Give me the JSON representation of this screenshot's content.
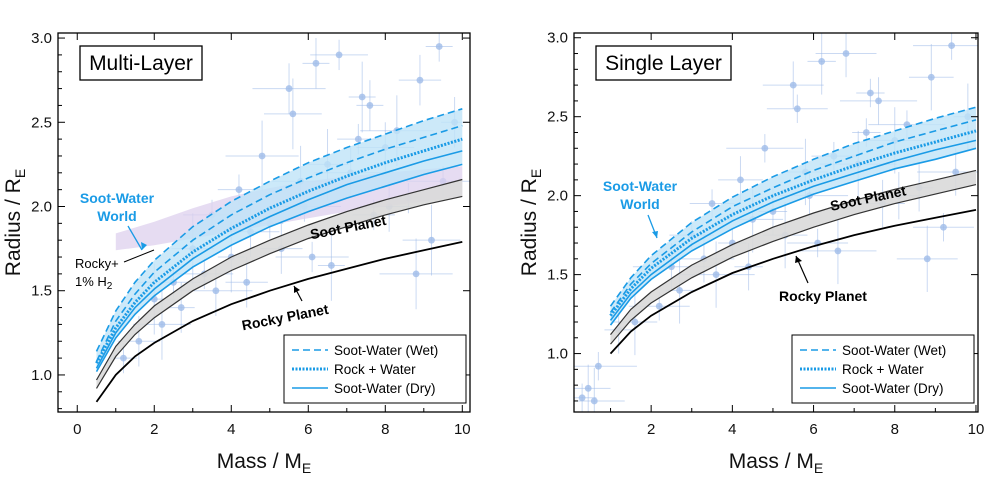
{
  "chart_data": [
    {
      "type": "line",
      "title": "Multi-Layer",
      "xlabel": "Mass / M",
      "xlabel_sub": "E",
      "ylabel": "Radius / R",
      "ylabel_sub": "E",
      "xlim": [
        -0.5,
        10.2
      ],
      "ylim": [
        0.78,
        3.03
      ],
      "xticks": [
        0,
        2,
        4,
        6,
        8,
        10
      ],
      "yticks": [
        1.0,
        1.5,
        2.0,
        2.5,
        3.0
      ],
      "ytick_labels": [
        "1.0",
        "1.5",
        "2.0",
        "2.5",
        "3.0"
      ],
      "annotations": {
        "soot_water_world": [
          "Soot-Water",
          "World"
        ],
        "soot_planet": "Soot Planet",
        "rocky_planet": "Rocky Planet",
        "rocky_h2": [
          "Rocky+",
          "1% H",
          "2"
        ]
      },
      "curves": {
        "x": [
          0.5,
          1,
          1.5,
          2,
          3,
          4,
          5,
          6,
          7,
          8,
          9,
          10
        ],
        "wet_upper": [
          1.14,
          1.38,
          1.55,
          1.68,
          1.88,
          2.03,
          2.15,
          2.26,
          2.35,
          2.43,
          2.51,
          2.58
        ],
        "wet_lower": [
          1.08,
          1.32,
          1.48,
          1.61,
          1.8,
          1.95,
          2.07,
          2.17,
          2.26,
          2.34,
          2.41,
          2.48
        ],
        "rock_water": [
          1.07,
          1.28,
          1.43,
          1.55,
          1.73,
          1.87,
          1.99,
          2.09,
          2.18,
          2.26,
          2.33,
          2.4
        ],
        "dry_upper": [
          1.04,
          1.25,
          1.4,
          1.51,
          1.69,
          1.83,
          1.94,
          2.04,
          2.13,
          2.2,
          2.27,
          2.33
        ],
        "dry_lower": [
          1.02,
          1.22,
          1.36,
          1.47,
          1.64,
          1.77,
          1.88,
          1.97,
          2.05,
          2.12,
          2.19,
          2.25
        ],
        "soot_upper": [
          0.97,
          1.17,
          1.3,
          1.41,
          1.57,
          1.7,
          1.8,
          1.89,
          1.97,
          2.04,
          2.1,
          2.16
        ],
        "soot_lower": [
          0.92,
          1.11,
          1.24,
          1.34,
          1.5,
          1.62,
          1.72,
          1.81,
          1.88,
          1.95,
          2.01,
          2.06
        ],
        "rocky": [
          0.84,
          1.0,
          1.11,
          1.19,
          1.32,
          1.42,
          1.5,
          1.57,
          1.63,
          1.69,
          1.74,
          1.79
        ]
      },
      "h2_band": {
        "x": [
          1,
          2,
          3,
          4,
          5,
          6,
          7,
          8,
          9,
          10
        ],
        "upper": [
          1.84,
          1.91,
          1.99,
          2.06,
          2.11,
          2.15,
          2.18,
          2.2,
          2.22,
          2.24
        ],
        "lower": [
          1.74,
          1.77,
          1.81,
          1.85,
          1.89,
          1.93,
          1.97,
          2.0,
          2.03,
          2.06
        ]
      },
      "observed_planets": {
        "x": [
          1.2,
          1.6,
          2.2,
          2.5,
          2.7,
          3.0,
          3.3,
          3.6,
          4.0,
          4.2,
          4.5,
          4.8,
          5.0,
          5.3,
          5.6,
          5.9,
          6.2,
          6.5,
          6.8,
          7.1,
          7.4,
          7.7,
          8.0,
          8.3,
          8.6,
          8.9,
          9.2,
          9.5,
          9.8,
          2.0,
          3.5,
          5.5,
          6.6,
          7.3,
          8.1,
          8.8,
          9.4,
          4.4,
          5.8,
          6.1,
          7.6
        ],
        "y": [
          1.1,
          1.2,
          1.3,
          1.55,
          1.4,
          1.75,
          1.6,
          1.5,
          1.7,
          2.1,
          1.85,
          2.3,
          1.9,
          1.75,
          2.55,
          2.0,
          2.85,
          2.25,
          2.9,
          2.2,
          2.65,
          1.95,
          2.35,
          2.45,
          2.05,
          2.75,
          1.8,
          2.15,
          2.5,
          1.45,
          1.95,
          2.7,
          1.65,
          2.4,
          2.0,
          1.6,
          2.95,
          1.55,
          2.15,
          1.7,
          2.6
        ]
      },
      "legend": {
        "position": "bottom-right",
        "entries": [
          {
            "label": "Soot-Water (Wet)",
            "style": "dashed"
          },
          {
            "label": "Rock + Water",
            "style": "dotted"
          },
          {
            "label": "Soot-Water (Dry)",
            "style": "solid"
          }
        ]
      },
      "colors": {
        "blue": "#1a9be6",
        "band": "#bfe3f7",
        "gray": "#d9d9d9",
        "purple": "#ddd0ee",
        "points": "#9fbbe8"
      }
    },
    {
      "type": "line",
      "title": "Single Layer",
      "xlabel": "Mass / M",
      "xlabel_sub": "E",
      "ylabel": "Radius / R",
      "ylabel_sub": "E",
      "xlim": [
        0.1,
        10.05
      ],
      "ylim": [
        0.63,
        3.03
      ],
      "xticks": [
        2,
        4,
        6,
        8,
        10
      ],
      "yticks": [
        1.0,
        1.5,
        2.0,
        2.5,
        3.0
      ],
      "ytick_labels": [
        "1.0",
        "1.5",
        "2.0",
        "2.5",
        "3.0"
      ],
      "annotations": {
        "soot_water_world": [
          "Soot-Water",
          "World"
        ],
        "soot_planet": "Soot Planet",
        "rocky_planet": "Rocky Planet"
      },
      "curves": {
        "x": [
          1,
          1.5,
          2,
          3,
          4,
          5,
          6,
          7,
          8,
          9,
          10
        ],
        "wet_upper": [
          1.3,
          1.48,
          1.62,
          1.83,
          1.99,
          2.12,
          2.23,
          2.33,
          2.41,
          2.49,
          2.56
        ],
        "wet_lower": [
          1.26,
          1.44,
          1.57,
          1.77,
          1.93,
          2.05,
          2.16,
          2.25,
          2.34,
          2.41,
          2.48
        ],
        "rock_water": [
          1.24,
          1.41,
          1.54,
          1.73,
          1.88,
          2.0,
          2.1,
          2.19,
          2.27,
          2.34,
          2.41
        ],
        "dry_upper": [
          1.21,
          1.38,
          1.5,
          1.69,
          1.84,
          1.96,
          2.06,
          2.14,
          2.22,
          2.29,
          2.35
        ],
        "dry_lower": [
          1.18,
          1.35,
          1.47,
          1.65,
          1.79,
          1.91,
          2.01,
          2.09,
          2.17,
          2.23,
          2.3
        ],
        "soot_upper": [
          1.12,
          1.28,
          1.39,
          1.56,
          1.69,
          1.8,
          1.89,
          1.97,
          2.04,
          2.1,
          2.16
        ],
        "soot_lower": [
          1.06,
          1.21,
          1.32,
          1.48,
          1.61,
          1.71,
          1.8,
          1.88,
          1.95,
          2.01,
          2.07
        ],
        "rocky": [
          1.0,
          1.14,
          1.24,
          1.39,
          1.51,
          1.6,
          1.68,
          1.75,
          1.81,
          1.86,
          1.91
        ]
      },
      "observed_planets": {
        "x": [
          0.3,
          0.45,
          0.6,
          0.7,
          1.2,
          1.6,
          2.2,
          2.5,
          2.7,
          3.0,
          3.3,
          3.6,
          4.0,
          4.2,
          4.5,
          4.8,
          5.0,
          5.3,
          5.6,
          5.9,
          6.2,
          6.5,
          6.8,
          7.1,
          7.4,
          7.7,
          8.0,
          8.3,
          8.6,
          8.9,
          9.2,
          9.5,
          9.8,
          3.5,
          5.5,
          6.6,
          7.3,
          8.1,
          8.8,
          9.4,
          4.4,
          5.8,
          6.1,
          7.6
        ],
        "y": [
          0.72,
          0.78,
          0.7,
          0.92,
          1.15,
          1.2,
          1.3,
          1.55,
          1.4,
          1.75,
          1.6,
          1.5,
          1.7,
          2.1,
          1.85,
          2.3,
          1.9,
          1.75,
          2.55,
          2.0,
          2.85,
          2.25,
          2.9,
          2.2,
          2.65,
          1.95,
          2.35,
          2.45,
          2.05,
          2.75,
          1.8,
          2.15,
          2.5,
          1.95,
          2.7,
          1.65,
          2.4,
          2.0,
          1.6,
          2.95,
          1.55,
          2.15,
          1.7,
          2.6
        ]
      },
      "legend": {
        "position": "bottom-right",
        "entries": [
          {
            "label": "Soot-Water (Wet)",
            "style": "dashed"
          },
          {
            "label": "Rock + Water",
            "style": "dotted"
          },
          {
            "label": "Soot-Water (Dry)",
            "style": "solid"
          }
        ]
      },
      "colors": {
        "blue": "#1a9be6",
        "band": "#bfe3f7",
        "gray": "#d9d9d9",
        "points": "#9fbbe8"
      }
    }
  ]
}
